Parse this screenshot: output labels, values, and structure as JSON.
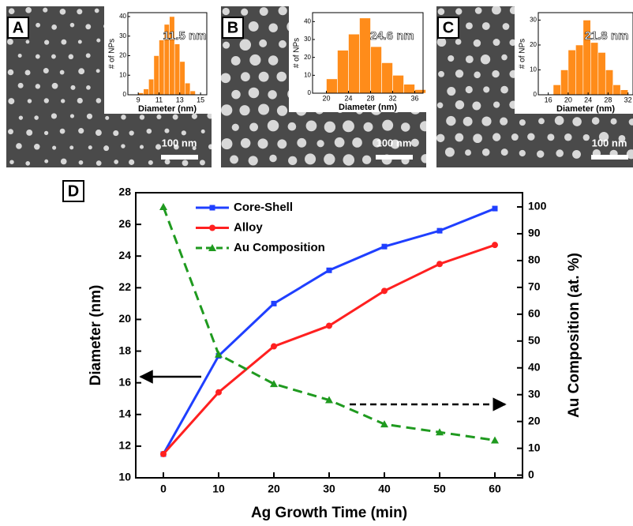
{
  "chart_data": [
    {
      "type": "histogram",
      "label": "A",
      "annotations": [
        "11.5 nm",
        "100 nm"
      ],
      "xlabel": "Diameter (nm)",
      "ylabel": "# of NPs",
      "color": "#ff8c1a",
      "bins": [
        9,
        9.5,
        10,
        10.5,
        11,
        11.5,
        12,
        12.5,
        13,
        13.5,
        14,
        14.5
      ],
      "counts": [
        1,
        3,
        8,
        20,
        28,
        36,
        40,
        26,
        17,
        6,
        2
      ],
      "xlim": [
        8,
        15.6
      ],
      "xticks": [
        9,
        11,
        13,
        15
      ],
      "ylim": [
        0,
        42
      ],
      "yticks": [
        0,
        10,
        20,
        30,
        40
      ]
    },
    {
      "type": "histogram",
      "label": "B",
      "annotations": [
        "24.6 nm",
        "100 nm"
      ],
      "xlabel": "Diameter (nm)",
      "ylabel": "# of NPs",
      "color": "#ff8c1a",
      "bins": [
        20,
        22,
        24,
        26,
        28,
        30,
        32,
        34,
        36,
        38
      ],
      "counts": [
        8,
        24,
        33,
        42,
        26,
        17,
        10,
        5,
        2
      ],
      "xlim": [
        17.5,
        37.5
      ],
      "xticks": [
        20,
        24,
        28,
        32,
        36
      ],
      "ylim": [
        0,
        45
      ],
      "yticks": [
        0,
        10,
        20,
        30,
        40
      ]
    },
    {
      "type": "histogram",
      "label": "C",
      "annotations": [
        "21.8 nm",
        "100 nm"
      ],
      "xlabel": "Diameter (nm)",
      "ylabel": "# of NPs",
      "color": "#ff8c1a",
      "bins": [
        17,
        18.5,
        20,
        21.5,
        23,
        24.5,
        26,
        27.5,
        29,
        30.5,
        32
      ],
      "counts": [
        4,
        10,
        18,
        20,
        30,
        21,
        17,
        10,
        4,
        2
      ],
      "xlim": [
        14,
        33
      ],
      "xticks": [
        16,
        20,
        24,
        28,
        32
      ],
      "ylim": [
        0,
        33
      ],
      "yticks": [
        0,
        10,
        20,
        30
      ]
    },
    {
      "type": "line",
      "label": "D",
      "xlabel": "Ag Growth Time (min)",
      "ylabel": "Diameter (nm)",
      "y2label": "Au Composition (at. %)",
      "x": [
        0,
        10,
        20,
        30,
        40,
        50,
        60
      ],
      "xlim": [
        -5,
        65
      ],
      "xticks": [
        0,
        10,
        20,
        30,
        40,
        50,
        60
      ],
      "ylim": [
        10,
        28
      ],
      "yticks": [
        10,
        12,
        14,
        16,
        18,
        20,
        22,
        24,
        26,
        28
      ],
      "y2lim": [
        -1,
        105.3
      ],
      "y2ticks": [
        0,
        10,
        20,
        30,
        40,
        50,
        60,
        70,
        80,
        90,
        100
      ],
      "legend": "upper left",
      "series": [
        {
          "name": "Core-Shell",
          "color": "#1f3fff",
          "marker": "square",
          "dash": "solid",
          "values": [
            11.5,
            17.7,
            21,
            23.1,
            24.6,
            25.6,
            27
          ]
        },
        {
          "name": "Alloy",
          "color": "#ff2020",
          "marker": "circle",
          "dash": "solid",
          "values": [
            11.5,
            15.4,
            18.3,
            19.6,
            21.8,
            23.5,
            24.7
          ]
        },
        {
          "name": "Au Composition",
          "color": "#1f9a1f",
          "marker": "triangle",
          "dash": "dashed",
          "axis": "y2",
          "values": [
            100,
            45,
            34,
            28,
            19,
            16,
            13
          ]
        }
      ]
    }
  ]
}
